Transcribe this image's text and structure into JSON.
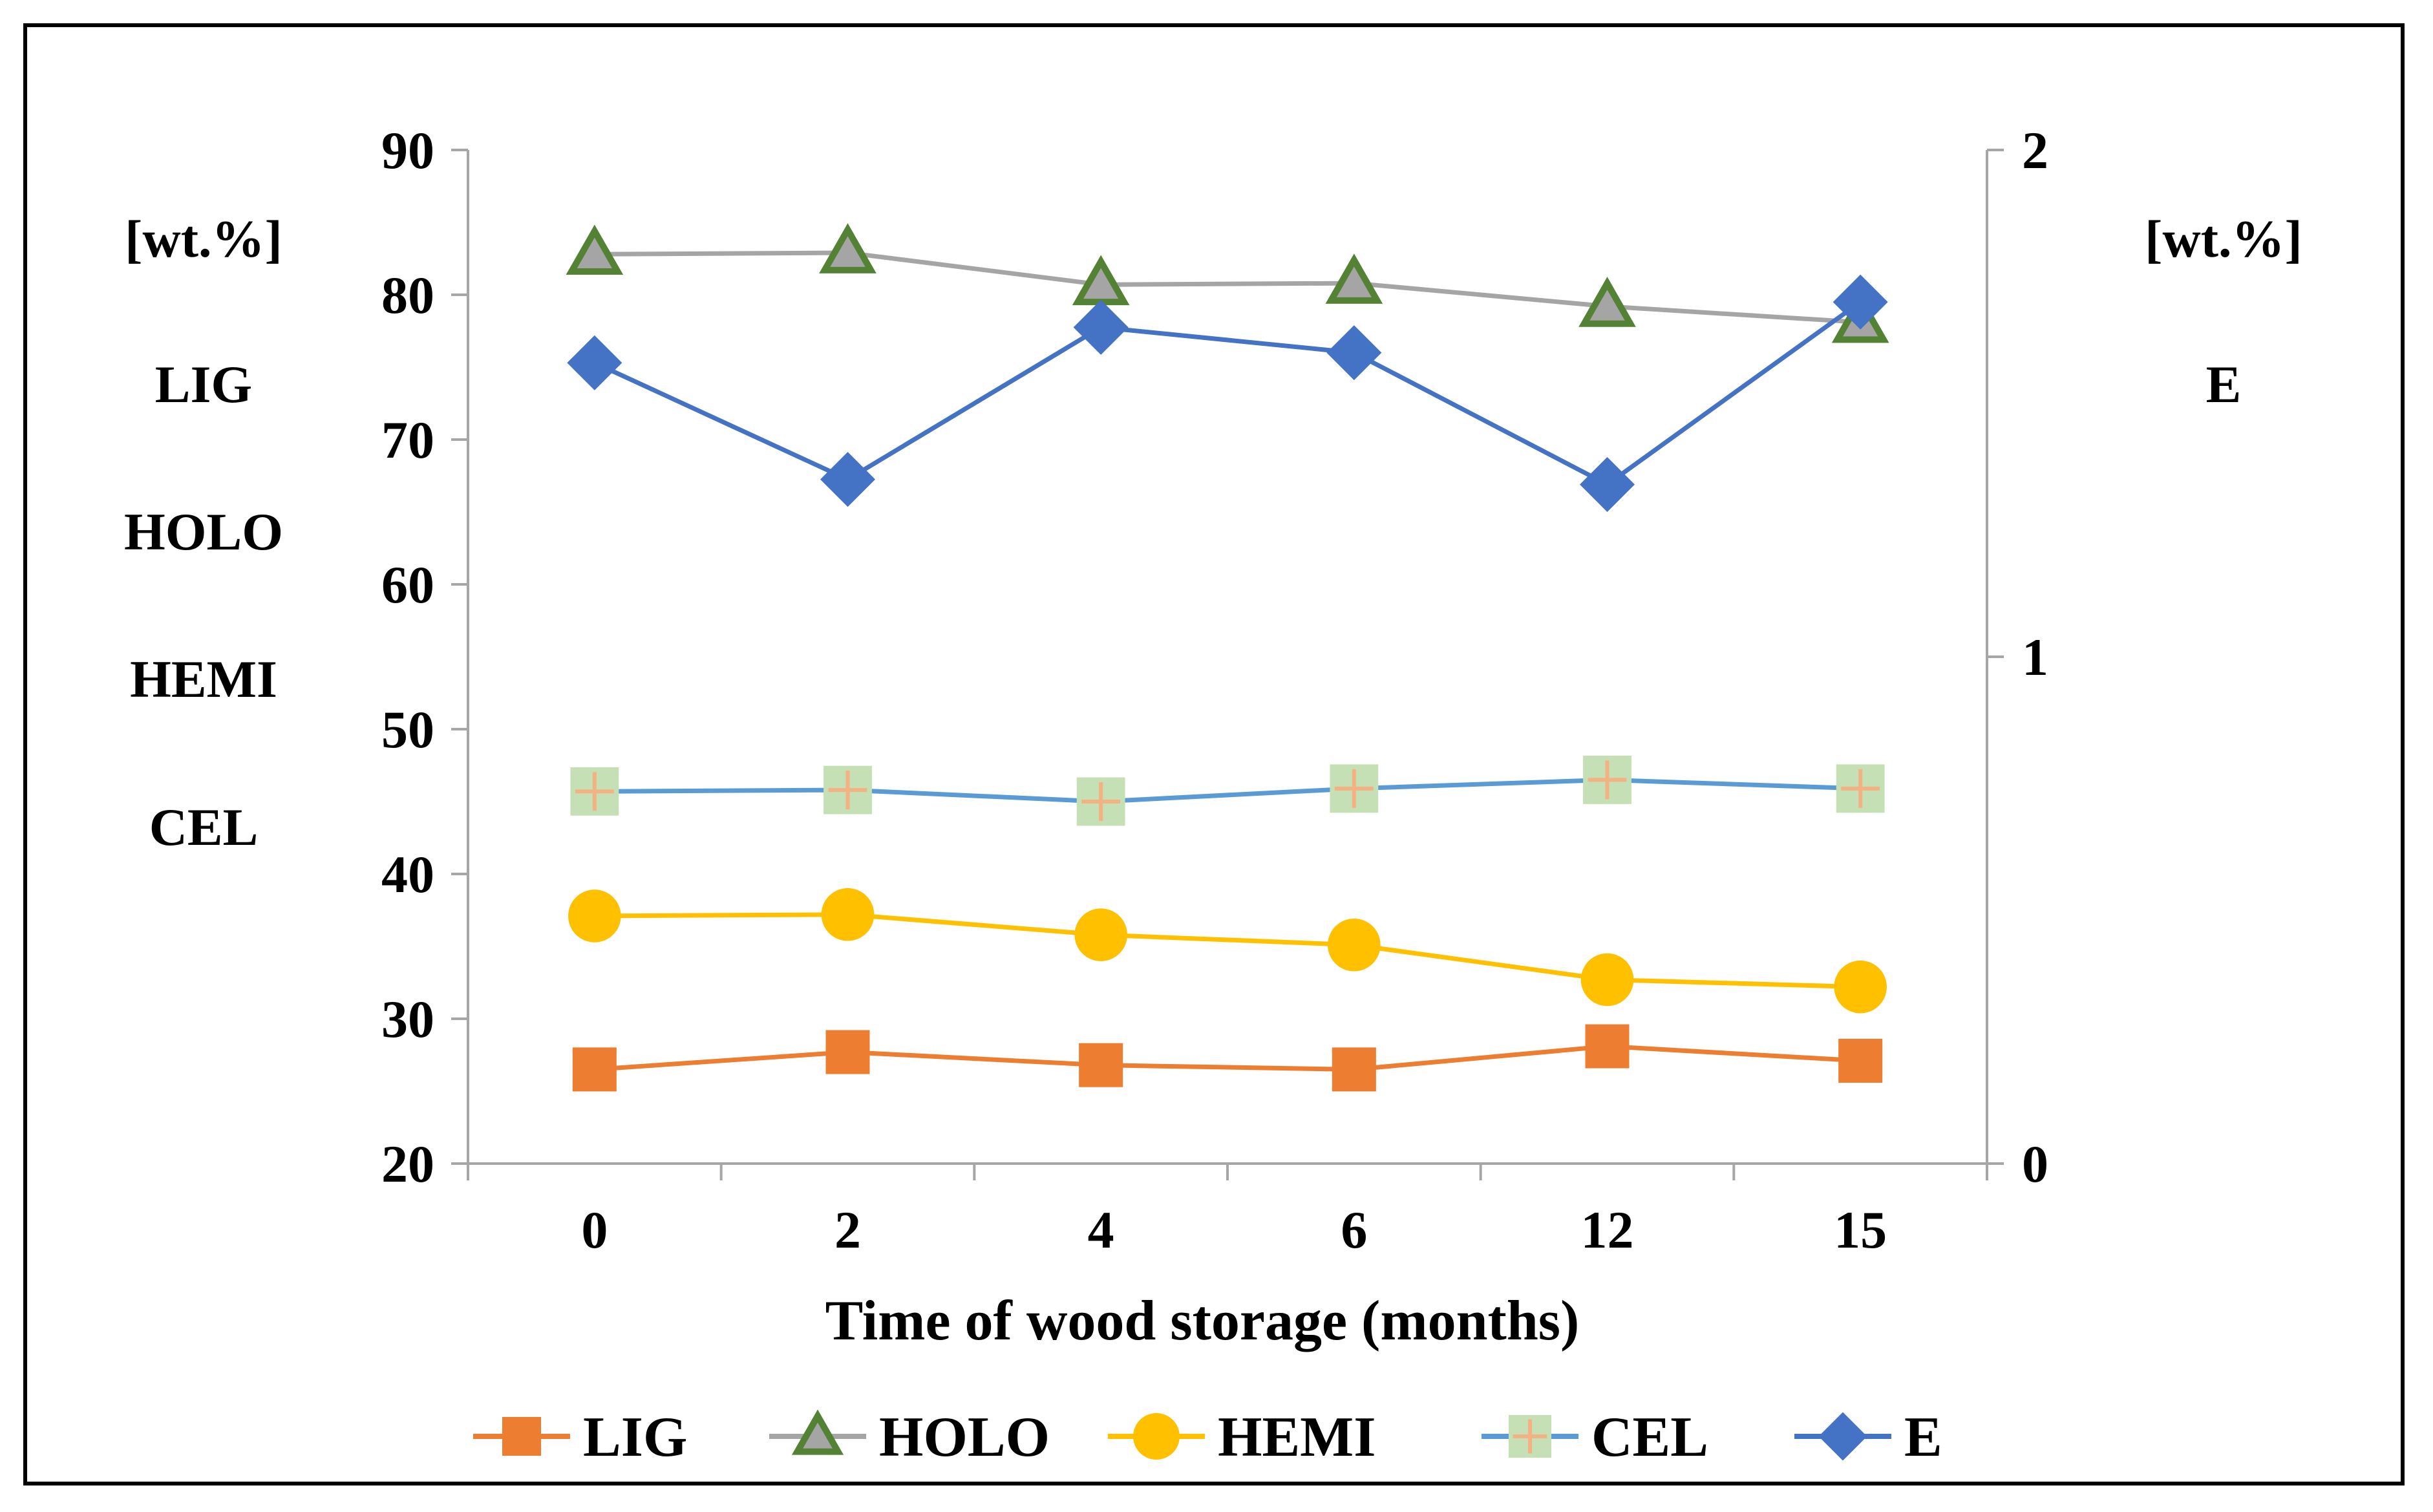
{
  "chart_data": {
    "type": "line",
    "title": "",
    "xlabel": "Time of wood storage (months)",
    "categories": [
      "0",
      "2",
      "4",
      "6",
      "12",
      "15"
    ],
    "left_axis": {
      "unit_label": "[wt.%]",
      "series_labels": [
        "LIG",
        "HOLO",
        "HEMI",
        "CEL"
      ],
      "ylim": [
        20,
        90
      ],
      "ticks": [
        20,
        30,
        40,
        50,
        60,
        70,
        80,
        90
      ]
    },
    "right_axis": {
      "unit_label": "[wt.%]",
      "series_labels": [
        "E"
      ],
      "ylim": [
        0,
        2
      ],
      "ticks": [
        0,
        1,
        2
      ]
    },
    "series": [
      {
        "name": "LIG",
        "axis": "left",
        "color": "#ED7D31",
        "marker": "square",
        "values": [
          26.5,
          27.7,
          26.8,
          26.5,
          28.1,
          27.1
        ]
      },
      {
        "name": "HOLO",
        "axis": "left",
        "color": "#A5A5A5",
        "marker_color": "#548235",
        "marker": "triangle",
        "values": [
          82.8,
          82.9,
          80.7,
          80.8,
          79.2,
          78.1
        ]
      },
      {
        "name": "HEMI",
        "axis": "left",
        "color": "#FFC000",
        "marker": "circle",
        "values": [
          37.1,
          37.2,
          35.8,
          35.1,
          32.7,
          32.2
        ]
      },
      {
        "name": "CEL",
        "axis": "left",
        "color": "#5B9BD5",
        "marker_color": "#C5E0B4",
        "marker_cross": "#F4B183",
        "marker": "plus-square",
        "values": [
          45.7,
          45.8,
          45.0,
          45.9,
          46.5,
          45.9
        ]
      },
      {
        "name": "E",
        "axis": "right",
        "color": "#4472C4",
        "marker": "diamond",
        "values": [
          1.58,
          1.35,
          1.65,
          1.6,
          1.34,
          1.7
        ]
      }
    ],
    "legend_position": "bottom",
    "grid": false
  }
}
